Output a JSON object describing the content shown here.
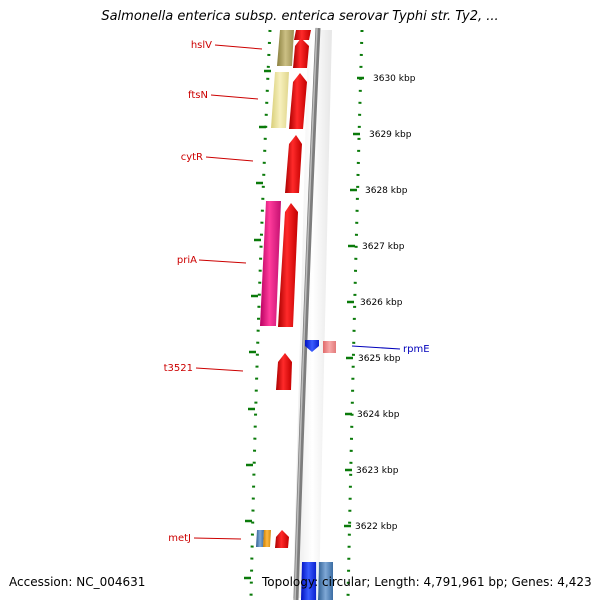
{
  "title": "Salmonella enterica subsp. enterica serovar Typhi str. Ty2, ...",
  "footer": {
    "accession": "Accession: NC_004631",
    "summary": "Topology: circular; Length: 4,791,961 bp; Genes: 4,423"
  },
  "colors": {
    "label_left": "#cc0000",
    "label_right": "#0000bb",
    "backbone": "#8c8c8c",
    "dots": "#0a7a0a",
    "cds_red": "#ff0000",
    "cds_magenta": "#ee1188",
    "cds_olive": "#b0a66a",
    "cds_cream": "#efe6a0",
    "cds_pink": "#f08a8a",
    "cds_blue": "#1a3cff",
    "cds_steel": "#4a7fb5",
    "cds_orange": "#e8a020"
  },
  "scale": {
    "unit": "kbp",
    "ticks": [
      {
        "value": 3630,
        "label": "3630 kbp"
      },
      {
        "value": 3629,
        "label": "3629 kbp"
      },
      {
        "value": 3628,
        "label": "3628 kbp"
      },
      {
        "value": 3627,
        "label": "3627 kbp"
      },
      {
        "value": 3626,
        "label": "3626 kbp"
      },
      {
        "value": 3625,
        "label": "3625 kbp"
      },
      {
        "value": 3624,
        "label": "3624 kbp"
      },
      {
        "value": 3623,
        "label": "3623 kbp"
      },
      {
        "value": 3622,
        "label": "3622 kbp"
      }
    ]
  },
  "gene_labels": {
    "left": [
      "hslV",
      "ftsN",
      "cytR",
      "priA",
      "t3521",
      "metJ"
    ],
    "right": [
      "rpmE"
    ]
  }
}
